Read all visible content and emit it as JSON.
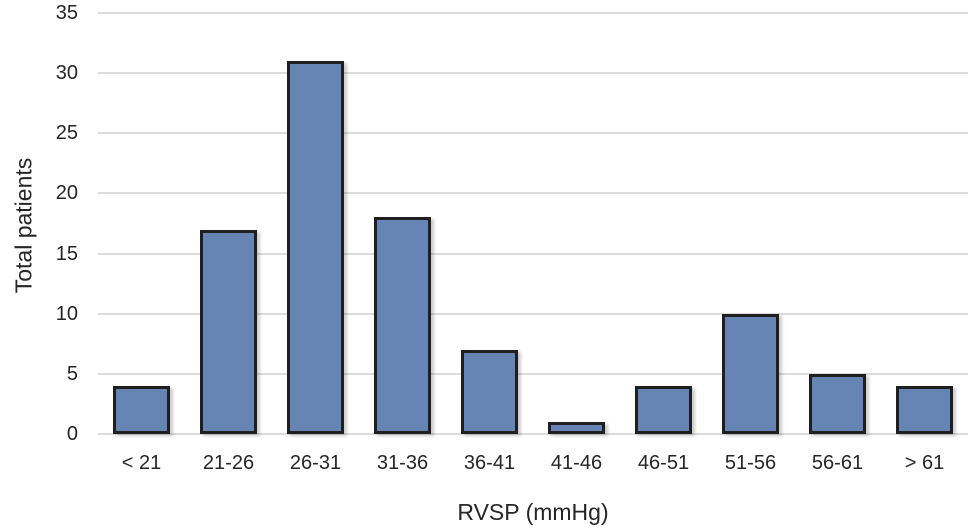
{
  "chart_data": {
    "type": "bar",
    "title": "",
    "categories": [
      "< 21",
      "21-26",
      "26-31",
      "31-36",
      "36-41",
      "41-46",
      "46-51",
      "51-56",
      "56-61",
      "> 61"
    ],
    "values": [
      4,
      17,
      31,
      18,
      7,
      1,
      4,
      10,
      5,
      4
    ],
    "xlabel": "RVSP (mmHg)",
    "ylabel": "Total patients",
    "ylim": [
      0,
      35
    ],
    "yticks": [
      0,
      5,
      10,
      15,
      20,
      25,
      30,
      35
    ],
    "grid": "horizontal",
    "legend": "none",
    "bar_fill_color": "#6685b4",
    "bar_border_color": "#1f1f1f",
    "gridline_color": "#dcdcdc",
    "text_color": "#262626"
  }
}
